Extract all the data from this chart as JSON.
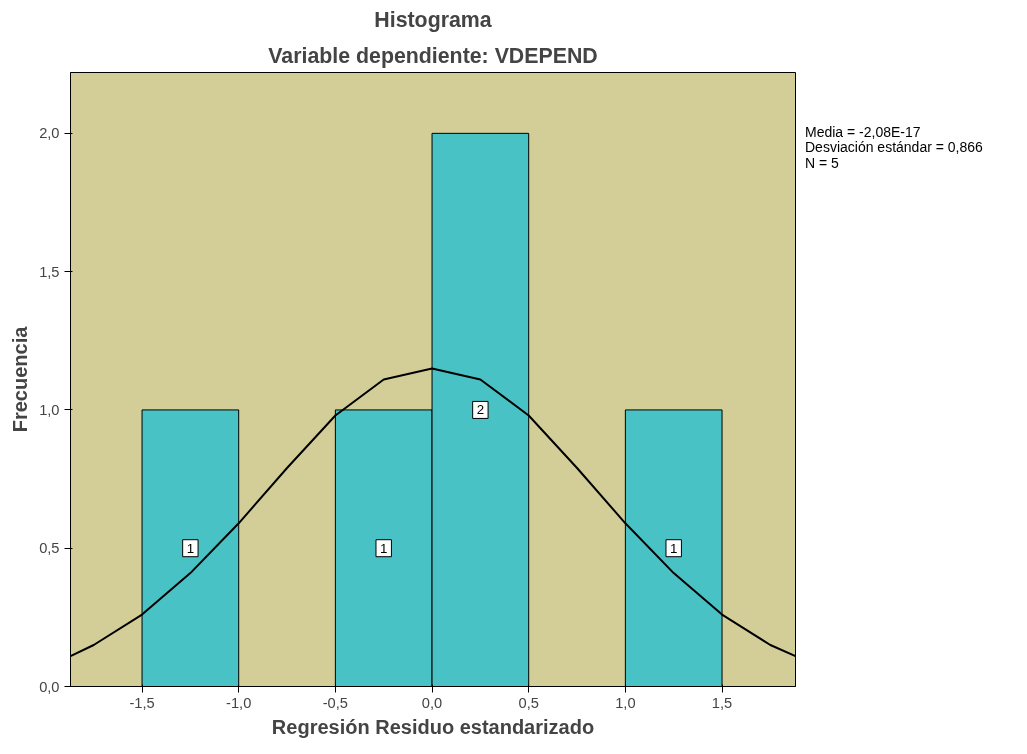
{
  "chart_data": {
    "type": "histogram",
    "title": "Histograma",
    "subtitle": "Variable dependiente: VDEPEND",
    "xlabel": "Regresión Residuo estandarizado",
    "ylabel": "Frecuencia",
    "bins": [
      -1.5,
      -1.0,
      -0.5,
      0.0,
      0.5,
      1.0,
      1.5
    ],
    "series": [
      {
        "color": "#48c2c5",
        "values": [
          1,
          0,
          1,
          2,
          0,
          1
        ],
        "value_labels": [
          "1",
          null,
          "1",
          "2",
          null,
          "1"
        ]
      },
      {
        "type": "line",
        "color": "#000000",
        "x": [
          -1.87,
          -1.75,
          -1.5,
          -1.25,
          -1.0,
          -0.75,
          -0.5,
          -0.25,
          0.0,
          0.25,
          0.5,
          0.75,
          1.0,
          1.25,
          1.5,
          1.75,
          1.88
        ],
        "values": [
          0.11,
          0.15,
          0.26,
          0.41,
          0.59,
          0.79,
          0.98,
          1.11,
          1.15,
          1.11,
          0.98,
          0.79,
          0.59,
          0.41,
          0.26,
          0.15,
          0.11
        ]
      }
    ],
    "xlim": [
      -1.87,
      1.88
    ],
    "ylim": [
      0,
      2.22
    ],
    "xticks": [
      {
        "value": -1.5,
        "label": "-1,5"
      },
      {
        "value": -1.0,
        "label": "-1,0"
      },
      {
        "value": -0.5,
        "label": "-0,5"
      },
      {
        "value": 0.0,
        "label": "0,0"
      },
      {
        "value": 0.5,
        "label": "0,5"
      },
      {
        "value": 1.0,
        "label": "1,0"
      },
      {
        "value": 1.5,
        "label": "1,5"
      }
    ],
    "yticks": [
      {
        "value": 0.0,
        "label": "0,0"
      },
      {
        "value": 0.5,
        "label": "0,5"
      },
      {
        "value": 1.0,
        "label": "1,0"
      },
      {
        "value": 1.5,
        "label": "1,5"
      },
      {
        "value": 2.0,
        "label": "2,0"
      }
    ],
    "annotations": [
      "Media = -2,08E-17",
      "Desviación estándar = 0,866",
      "N = 5"
    ],
    "grid": false
  }
}
